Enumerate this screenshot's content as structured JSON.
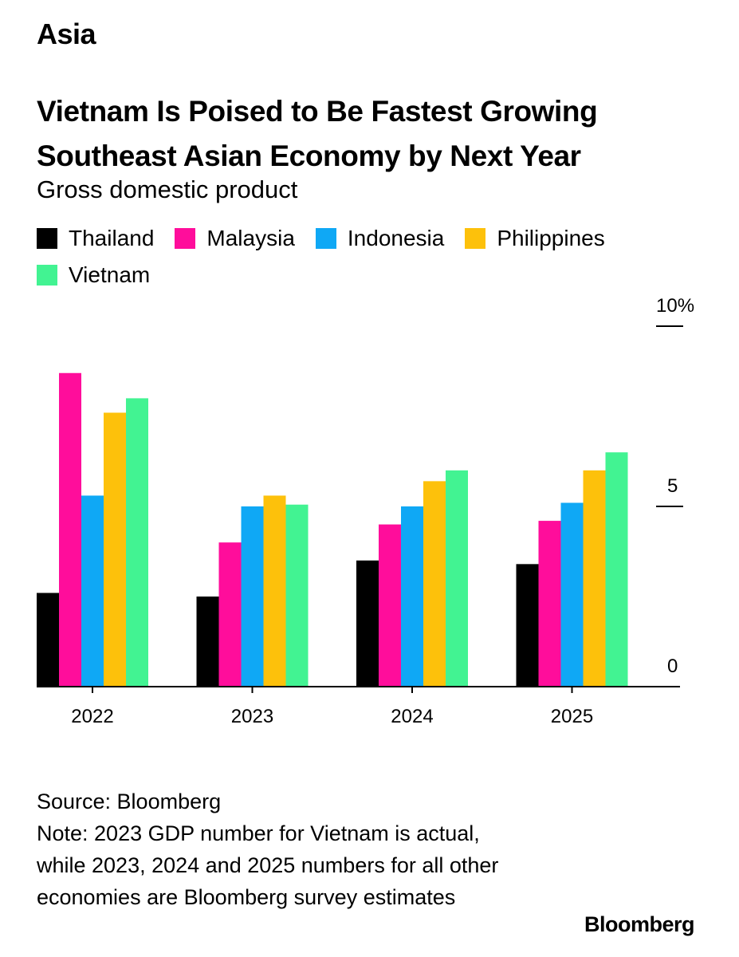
{
  "header": {
    "section": "Asia",
    "title": "Vietnam Is Poised to Be Fastest Growing Southeast Asian Economy by Next Year",
    "subtitle": "Gross domestic product"
  },
  "footer": {
    "source": "Source: Bloomberg",
    "note": "Note: 2023 GDP number for Vietnam is actual, while 2023, 2024 and 2025 numbers for all other economies are Bloomberg survey estimates",
    "brand": "Bloomberg"
  },
  "chart_data": {
    "type": "bar",
    "title": "Vietnam Is Poised to Be Fastest Growing Southeast Asian Economy by Next Year",
    "subtitle": "Gross domestic product",
    "categories": [
      "2022",
      "2023",
      "2024",
      "2025"
    ],
    "series": [
      {
        "name": "Thailand",
        "color": "#000000",
        "values": [
          2.6,
          2.5,
          3.5,
          3.4
        ]
      },
      {
        "name": "Malaysia",
        "color": "#ff0d9b",
        "values": [
          8.7,
          4.0,
          4.5,
          4.6
        ]
      },
      {
        "name": "Indonesia",
        "color": "#0fa8f5",
        "values": [
          5.3,
          5.0,
          5.0,
          5.1
        ]
      },
      {
        "name": "Philippines",
        "color": "#fdc10b",
        "values": [
          7.6,
          5.3,
          5.7,
          6.0
        ]
      },
      {
        "name": "Vietnam",
        "color": "#42f392",
        "values": [
          8.0,
          5.05,
          6.0,
          6.5
        ]
      }
    ],
    "y_ticks": [
      {
        "value": 0,
        "label": "0"
      },
      {
        "value": 5,
        "label": "5"
      },
      {
        "value": 10,
        "label": "10%"
      }
    ],
    "ylim": [
      0,
      10
    ],
    "grid": false,
    "legend_position": "top-left",
    "y_axis_position": "right"
  }
}
